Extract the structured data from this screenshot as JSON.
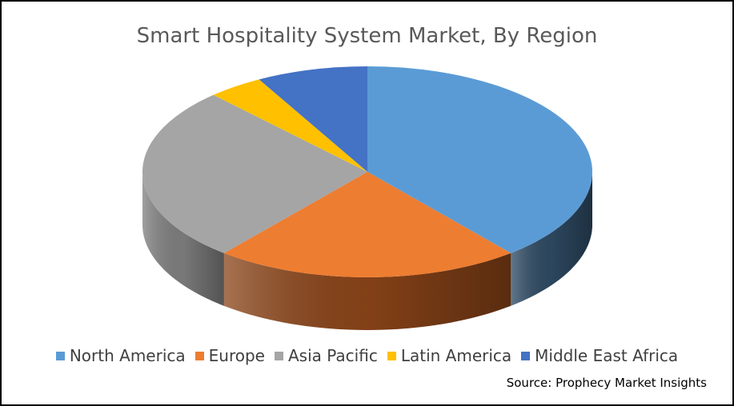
{
  "chart_data": {
    "type": "pie",
    "title": "Smart Hospitality System Market, By Region",
    "categories": [
      "North America",
      "Europe",
      "Asia Pacific",
      "Latin America",
      "Middle East Africa"
    ],
    "values": [
      39,
      22,
      27,
      4,
      8
    ],
    "colors": [
      "#5b9bd5",
      "#ed7d31",
      "#a5a5a5",
      "#ffc000",
      "#4472c4"
    ],
    "side_colors": [
      "#2e4a63",
      "#8a4418",
      "#7f7f7f",
      "#b38700",
      "#2f4f87"
    ],
    "legend_position": "bottom"
  },
  "source": "Source: Prophecy Market Insights"
}
